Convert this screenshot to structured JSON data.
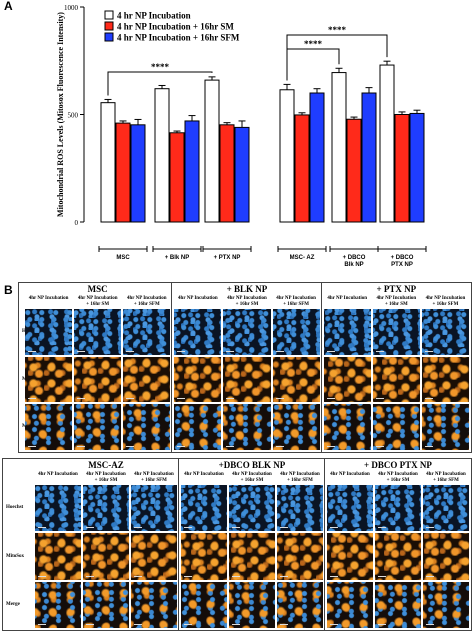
{
  "panel_a_label": "A",
  "panel_b_label": "B",
  "chart_data": {
    "type": "bar",
    "title": "",
    "ylabel": "Mitochondrial ROS Levels (Mitosox Fluorescence Intensity)",
    "xlabel": "",
    "ylim": [
      0,
      1000
    ],
    "yticks": [
      "0",
      "500",
      "1000"
    ],
    "legend": {
      "placement": "top-left"
    },
    "categories": [
      "MSC",
      "+ Blk NP",
      "+ PTX NP",
      "MSC- AZ",
      "+ DBCO Blk NP",
      "+ DBCO PTX NP"
    ],
    "category_lines": [
      [
        "MSC"
      ],
      [
        "+ Blk NP"
      ],
      [
        "+ PTX NP"
      ],
      [
        "MSC- AZ"
      ],
      [
        "+ DBCO",
        "Blk NP"
      ],
      [
        "+ DBCO",
        "PTX NP"
      ]
    ],
    "series": [
      {
        "name": "4 hr NP Incubation",
        "color": "#ffffff",
        "values": [
          555,
          620,
          660,
          615,
          695,
          730
        ],
        "errors": [
          15,
          15,
          15,
          25,
          20,
          18
        ]
      },
      {
        "name": "4 hr NP Incubation + 16hr SM",
        "color": "#ff2a1a",
        "values": [
          460,
          415,
          452,
          498,
          478,
          500
        ],
        "errors": [
          10,
          8,
          10,
          10,
          10,
          12
        ]
      },
      {
        "name": "4 hr NP Incubation + 16hr  SFM",
        "color": "#1f3dff",
        "values": [
          452,
          470,
          440,
          600,
          600,
          505
        ],
        "errors": [
          25,
          25,
          30,
          20,
          25,
          15
        ]
      }
    ],
    "annotations": [
      {
        "text": "****",
        "from": 0,
        "to": 2
      },
      {
        "text": "****",
        "from": 3,
        "to": 4
      },
      {
        "text": "****",
        "from": 3,
        "to": 5
      }
    ],
    "grid": false
  },
  "panel_b": {
    "row_labels": [
      "Hoechst",
      "MitoSox",
      "Merge"
    ],
    "col_labels": [
      "4hr NP Incubation",
      "4hr NP Incubation\n+ 16hr SM",
      "4hr NP Incubation\n+ 16hr SFM"
    ],
    "top_groups": [
      "MSC",
      "+ BLK NP",
      "+ PTX NP"
    ],
    "bottom_groups": [
      "MSC-AZ",
      "+DBCO BLK NP",
      "+ DBCO PTX NP"
    ]
  }
}
